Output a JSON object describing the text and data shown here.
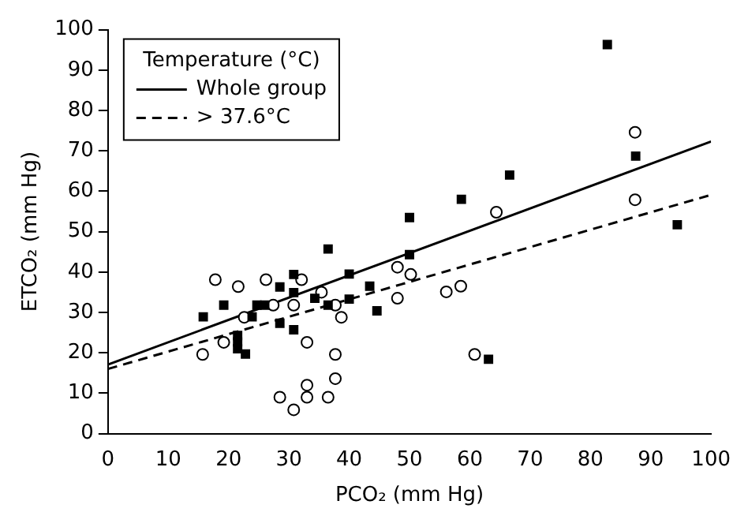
{
  "chart_data": {
    "type": "scatter",
    "xlabel": "PCO₂ (mm Hg)",
    "ylabel": "ETCO₂ (mm Hg)",
    "legend_title": "Temperature (°C)",
    "xlim": [
      0,
      100
    ],
    "ylim": [
      0,
      100
    ],
    "xticks": [
      0,
      10,
      20,
      30,
      40,
      50,
      60,
      70,
      80,
      90,
      100
    ],
    "yticks": [
      0,
      10,
      20,
      30,
      40,
      50,
      60,
      70,
      80,
      90,
      100
    ],
    "grid": false,
    "legend": "top left",
    "series": [
      {
        "marker": "square",
        "color": "#000000",
        "x": [
          15.8,
          19.2,
          21.5,
          21.5,
          21.5,
          22.8,
          23.9,
          24.7,
          26,
          28.5,
          28.5,
          30.8,
          30.8,
          30.8,
          34.3,
          36.5,
          36.5,
          40,
          40,
          43.4,
          44.6,
          50,
          50,
          82.8,
          87.5,
          66.6,
          58.6,
          94.4,
          63.1
        ],
        "values": [
          28.9,
          31.8,
          24.3,
          22.7,
          21,
          19.7,
          28.9,
          31.8,
          31.8,
          36.3,
          27.3,
          39.4,
          34.9,
          25.7,
          33.5,
          45.7,
          31.8,
          39.5,
          33.3,
          36.5,
          30.4,
          53.5,
          44.3,
          96.3,
          68.7,
          64,
          58,
          51.7,
          18.4
        ]
      },
      {
        "marker": "circle",
        "color": "#000000",
        "x": [
          17.8,
          21.6,
          15.7,
          19.2,
          22.6,
          26.2,
          27.4,
          32.1,
          30.8,
          35.4,
          37.7,
          38.7,
          33,
          37.7,
          37.7,
          33,
          33,
          28.5,
          36.5,
          30.8,
          48,
          48,
          50.2,
          56.1,
          58.5,
          64.4,
          87.4,
          87.4,
          60.8
        ],
        "values": [
          38.1,
          36.4,
          19.6,
          22.6,
          28.8,
          38.1,
          31.8,
          38.1,
          31.8,
          35,
          31.8,
          28.8,
          22.6,
          19.6,
          13.6,
          12,
          9,
          9,
          9,
          5.9,
          41.2,
          33.5,
          39.4,
          35.1,
          36.5,
          54.8,
          74.6,
          57.9,
          19.6
        ]
      },
      {
        "type": "line",
        "name": "Whole group",
        "color": "#000000",
        "line_style": "solid",
        "marker": "none",
        "x": [
          0,
          100
        ],
        "values": [
          17.1,
          72.3
        ]
      },
      {
        "type": "line",
        "name": "> 37.6°C",
        "color": "#000000",
        "line_style": "dashed",
        "marker": "none",
        "x": [
          0,
          100
        ],
        "values": [
          16,
          59.1
        ]
      }
    ]
  }
}
